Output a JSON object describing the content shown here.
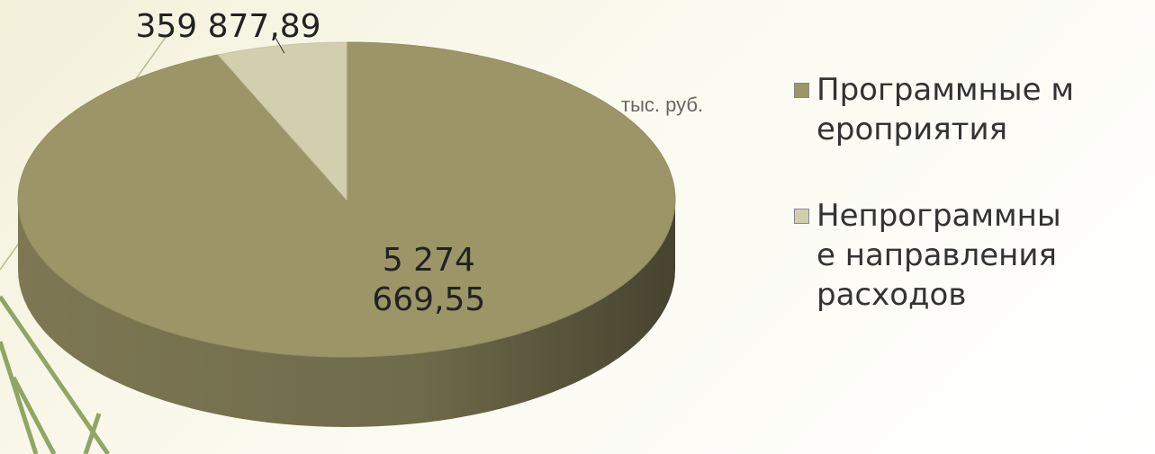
{
  "chart_data": {
    "type": "pie",
    "unit_label": "тыс. руб.",
    "categories": [
      "Программные мероприятия",
      "Непрограммные направления расходов"
    ],
    "values": [
      5274669.55,
      359877.89
    ],
    "value_labels": [
      "5 274 669,55",
      "359 877,89"
    ],
    "colors": [
      "#9c9568",
      "#d3cfae"
    ],
    "legend": "right"
  }
}
